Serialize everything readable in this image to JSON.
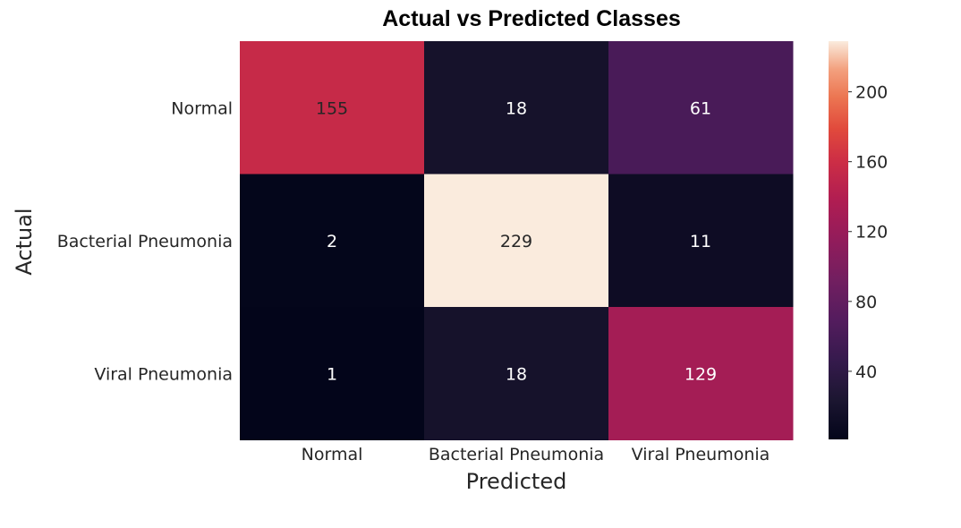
{
  "chart_data": {
    "type": "heatmap",
    "title": "Actual vs Predicted Classes",
    "xlabel": "Predicted",
    "ylabel": "Actual",
    "x_categories": [
      "Normal",
      "Bacterial Pneumonia",
      "Viral Pneumonia"
    ],
    "y_categories": [
      "Normal",
      "Bacterial Pneumonia",
      "Viral Pneumonia"
    ],
    "values": [
      [
        155,
        18,
        61
      ],
      [
        2,
        229,
        11
      ],
      [
        1,
        18,
        129
      ]
    ],
    "colorbar": {
      "range": [
        1,
        229
      ],
      "ticks": [
        40,
        80,
        120,
        160,
        200
      ],
      "colormap": "rocket"
    },
    "colors": {
      "text_on_dark": "#ffffff",
      "text_on_light": "#262626"
    }
  }
}
